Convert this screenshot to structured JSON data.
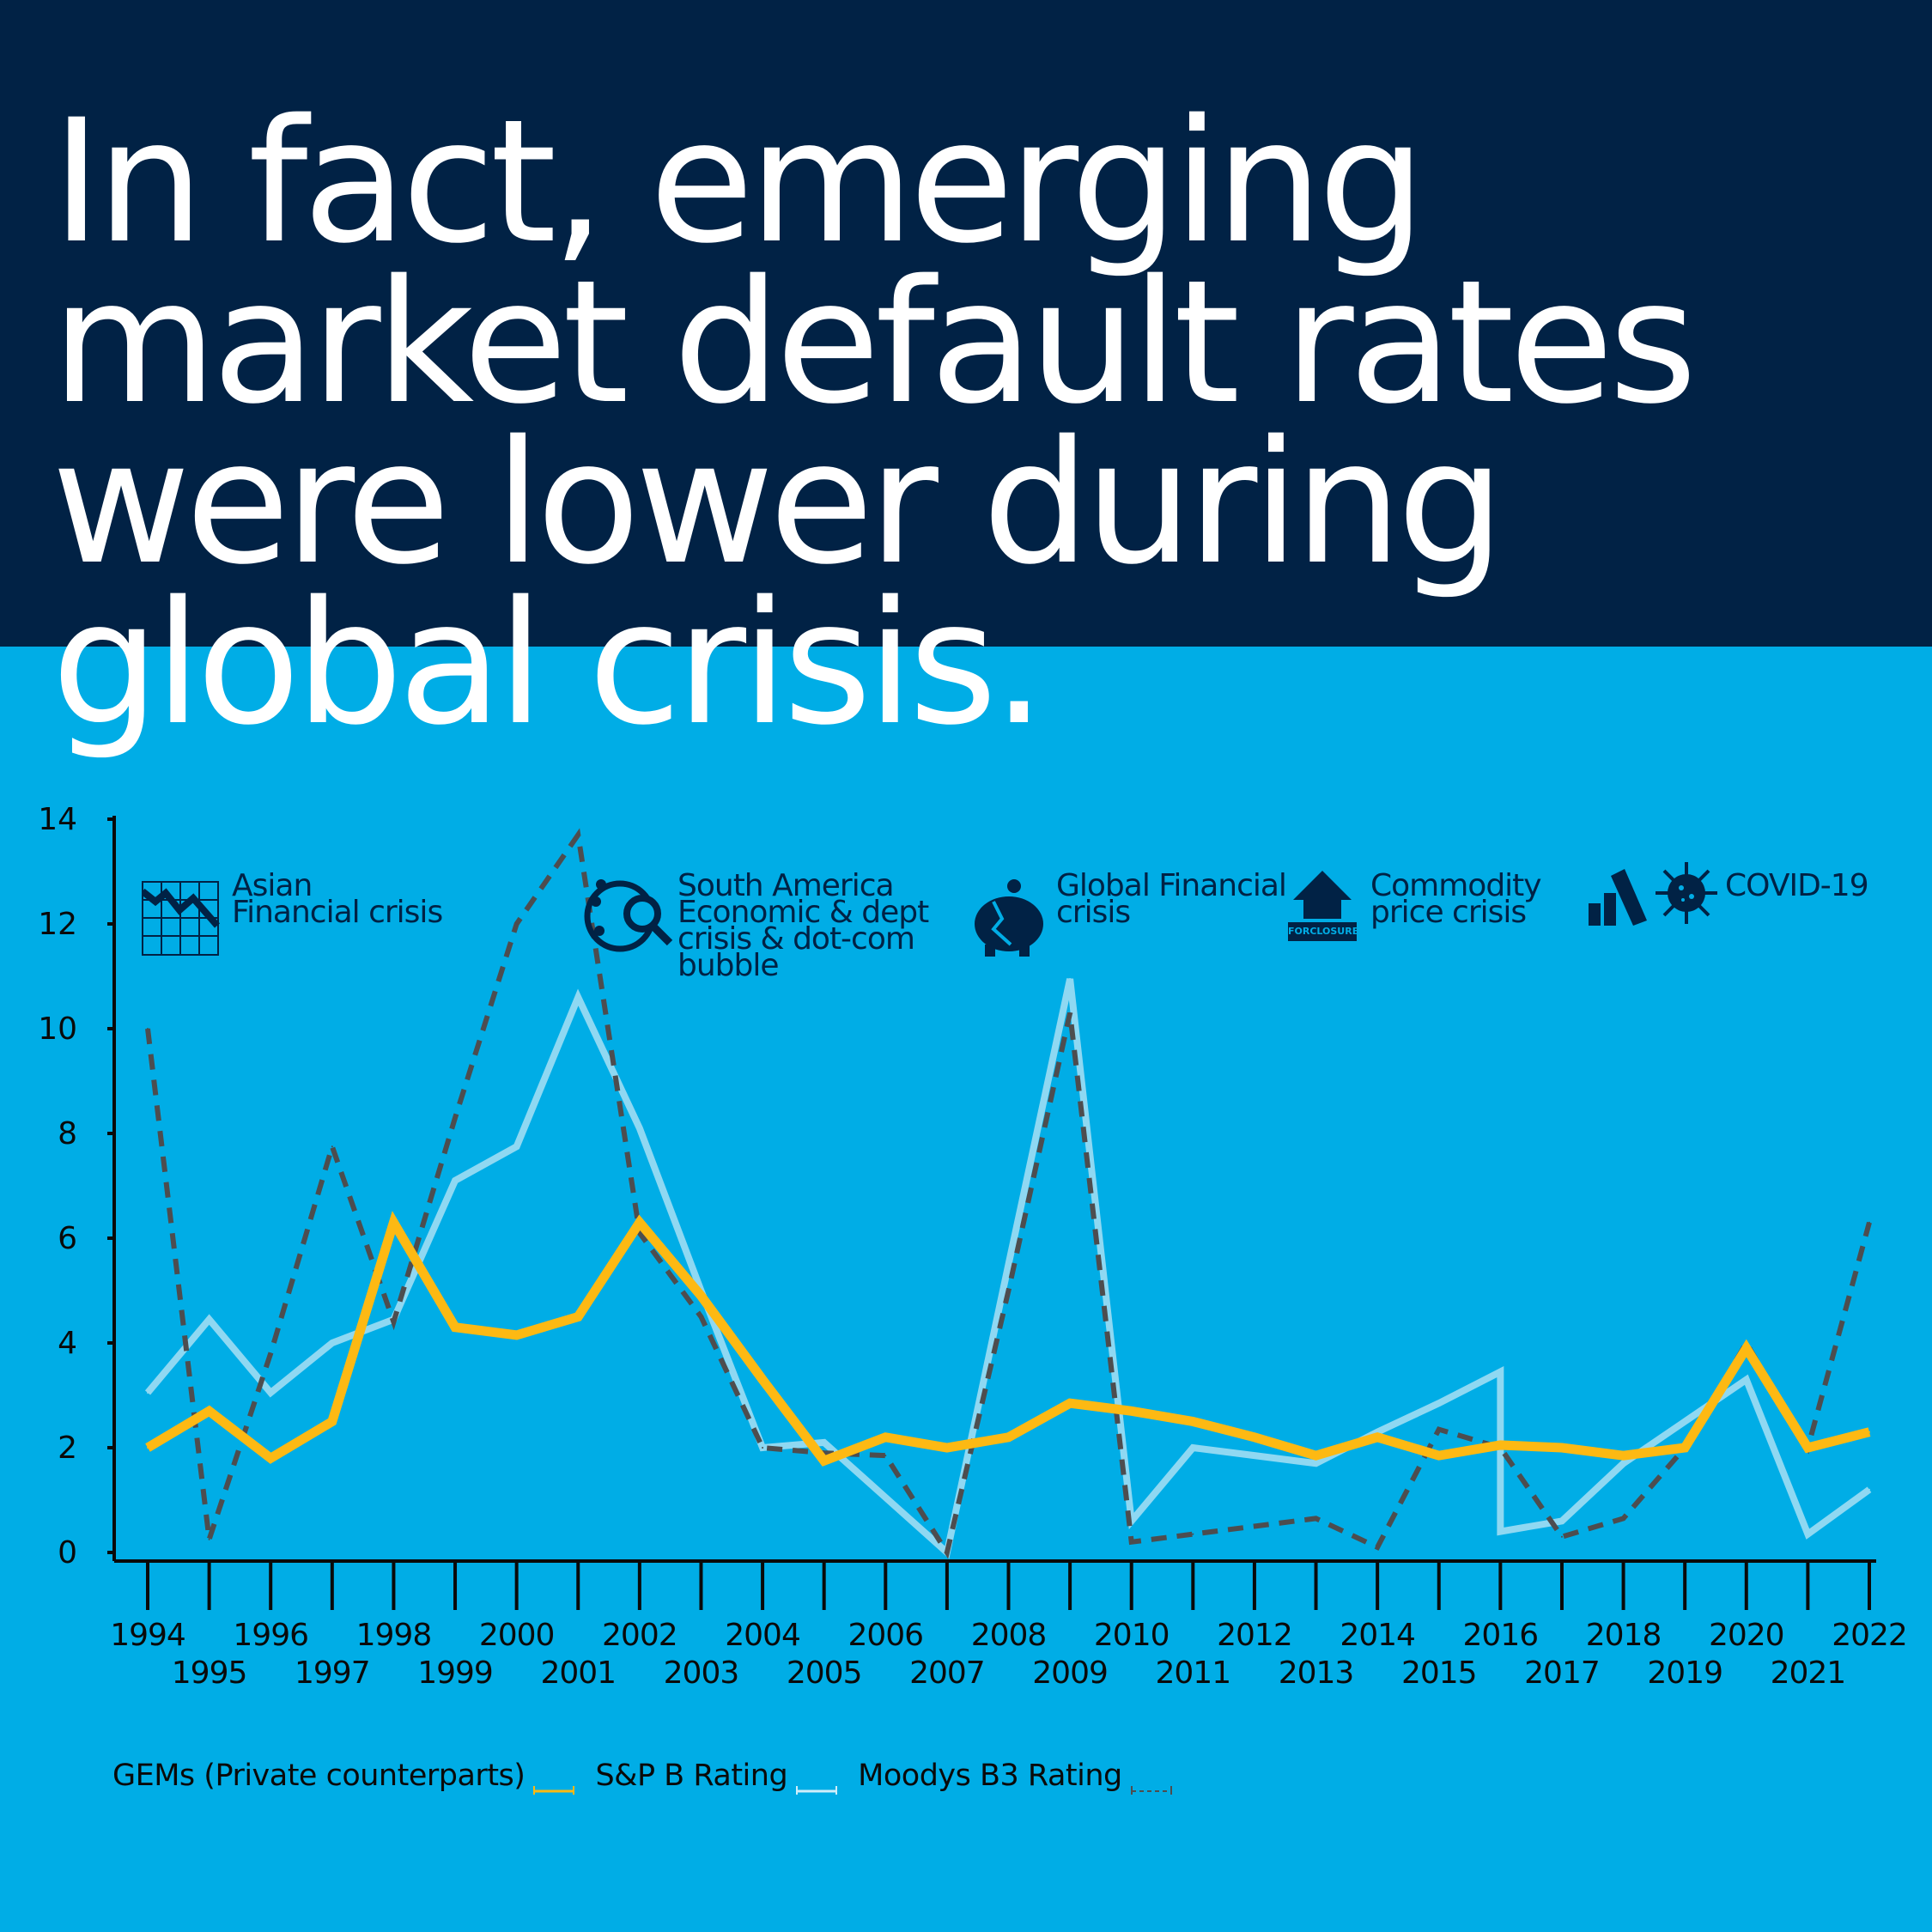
{
  "header": {
    "title": "In fact, emerging market default rates were lower during global crisis."
  },
  "annotations": [
    {
      "label": "Asian\nFinancial crisis",
      "icon": "declining-chart-icon"
    },
    {
      "label": "South America\nEconomic & dept\ncrisis & dot-com\nbubble",
      "icon": "globe-search-icon"
    },
    {
      "label": "Global Financial\ncrisis",
      "icon": "broken-piggy-bank-icon"
    },
    {
      "label": "Commodity\nprice crisis",
      "icon": "house-foreclosure-icon",
      "icon_text": "FORCLOSURE"
    },
    {
      "label": "COVID-19",
      "icon": "virus-declining-bars-icon"
    }
  ],
  "colors": {
    "background": "#00ade6",
    "header": "#012245",
    "gems": "#fdb913",
    "sp": "#8fd8f2",
    "moodys": "#4d4d4f"
  },
  "chart_data": {
    "type": "line",
    "title": "",
    "xlabel": "",
    "ylabel": "",
    "ylim": [
      0,
      14
    ],
    "yticks": [
      0,
      2,
      4,
      6,
      8,
      10,
      12,
      14
    ],
    "categories": [
      1994,
      1995,
      1996,
      1997,
      1998,
      1999,
      2000,
      2001,
      2002,
      2003,
      2004,
      2005,
      2006,
      2007,
      2008,
      2009,
      2010,
      2011,
      2012,
      2013,
      2014,
      2015,
      2016,
      2017,
      2018,
      2019,
      2020,
      2021,
      2022
    ],
    "grid": false,
    "legend": "bottom-left",
    "series": [
      {
        "name": "GEMs (Private counterparts)",
        "style": "solid-thick",
        "x": [
          1994,
          1995,
          1996,
          1997,
          1998,
          1999,
          2000,
          2001,
          2002,
          2003,
          2004,
          2005,
          2006,
          2007,
          2008,
          2009,
          2010,
          2011,
          2012,
          2013,
          2014,
          2015,
          2016,
          2017,
          2018,
          2019,
          2020,
          2021,
          2022
        ],
        "values": [
          2.0,
          2.7,
          1.8,
          2.5,
          6.3,
          4.3,
          4.15,
          4.5,
          6.3,
          4.9,
          3.3,
          1.75,
          2.2,
          2.0,
          2.2,
          2.85,
          2.7,
          2.5,
          2.2,
          1.85,
          2.2,
          1.85,
          2.05,
          2.0,
          1.85,
          2.0,
          3.9,
          2.0,
          2.3
        ]
      },
      {
        "name": "S&P B Rating",
        "style": "solid",
        "x": [
          1994,
          1995,
          1996,
          1997,
          1998,
          1999,
          2000,
          2001,
          2002,
          2003,
          2004,
          2005,
          2006,
          2007,
          2008,
          2009,
          2010,
          2011,
          2012,
          2013,
          2014,
          2015,
          2016,
          2016,
          2017,
          2018,
          2019,
          2020,
          2021,
          2022
        ],
        "values": [
          3.05,
          4.45,
          3.05,
          4.0,
          4.45,
          7.1,
          7.75,
          10.6,
          8.1,
          5.0,
          2.0,
          2.1,
          1.05,
          0.0,
          5.5,
          10.95,
          0.6,
          2.0,
          1.85,
          1.7,
          2.3,
          2.85,
          3.45,
          0.4,
          0.6,
          1.7,
          2.5,
          3.3,
          0.35,
          1.2
        ]
      },
      {
        "name": "Moodys B3 Rating",
        "style": "dashed",
        "x": [
          1994,
          1995,
          1996,
          1997,
          1998,
          1999,
          2000,
          2001,
          2002,
          2003,
          2004,
          2005,
          2006,
          2007,
          2008,
          2009,
          2010,
          2011,
          2012,
          2013,
          2014,
          2015,
          2016,
          2017,
          2018,
          2019,
          2020,
          2021,
          2022
        ],
        "values": [
          10.0,
          0.25,
          3.8,
          7.75,
          4.4,
          8.3,
          12.0,
          13.7,
          6.1,
          4.5,
          2.0,
          1.9,
          1.85,
          0.0,
          5.0,
          10.3,
          0.2,
          0.35,
          0.5,
          0.65,
          0.1,
          2.35,
          2.0,
          0.3,
          0.65,
          2.0,
          4.0,
          2.0,
          6.3
        ]
      }
    ]
  }
}
